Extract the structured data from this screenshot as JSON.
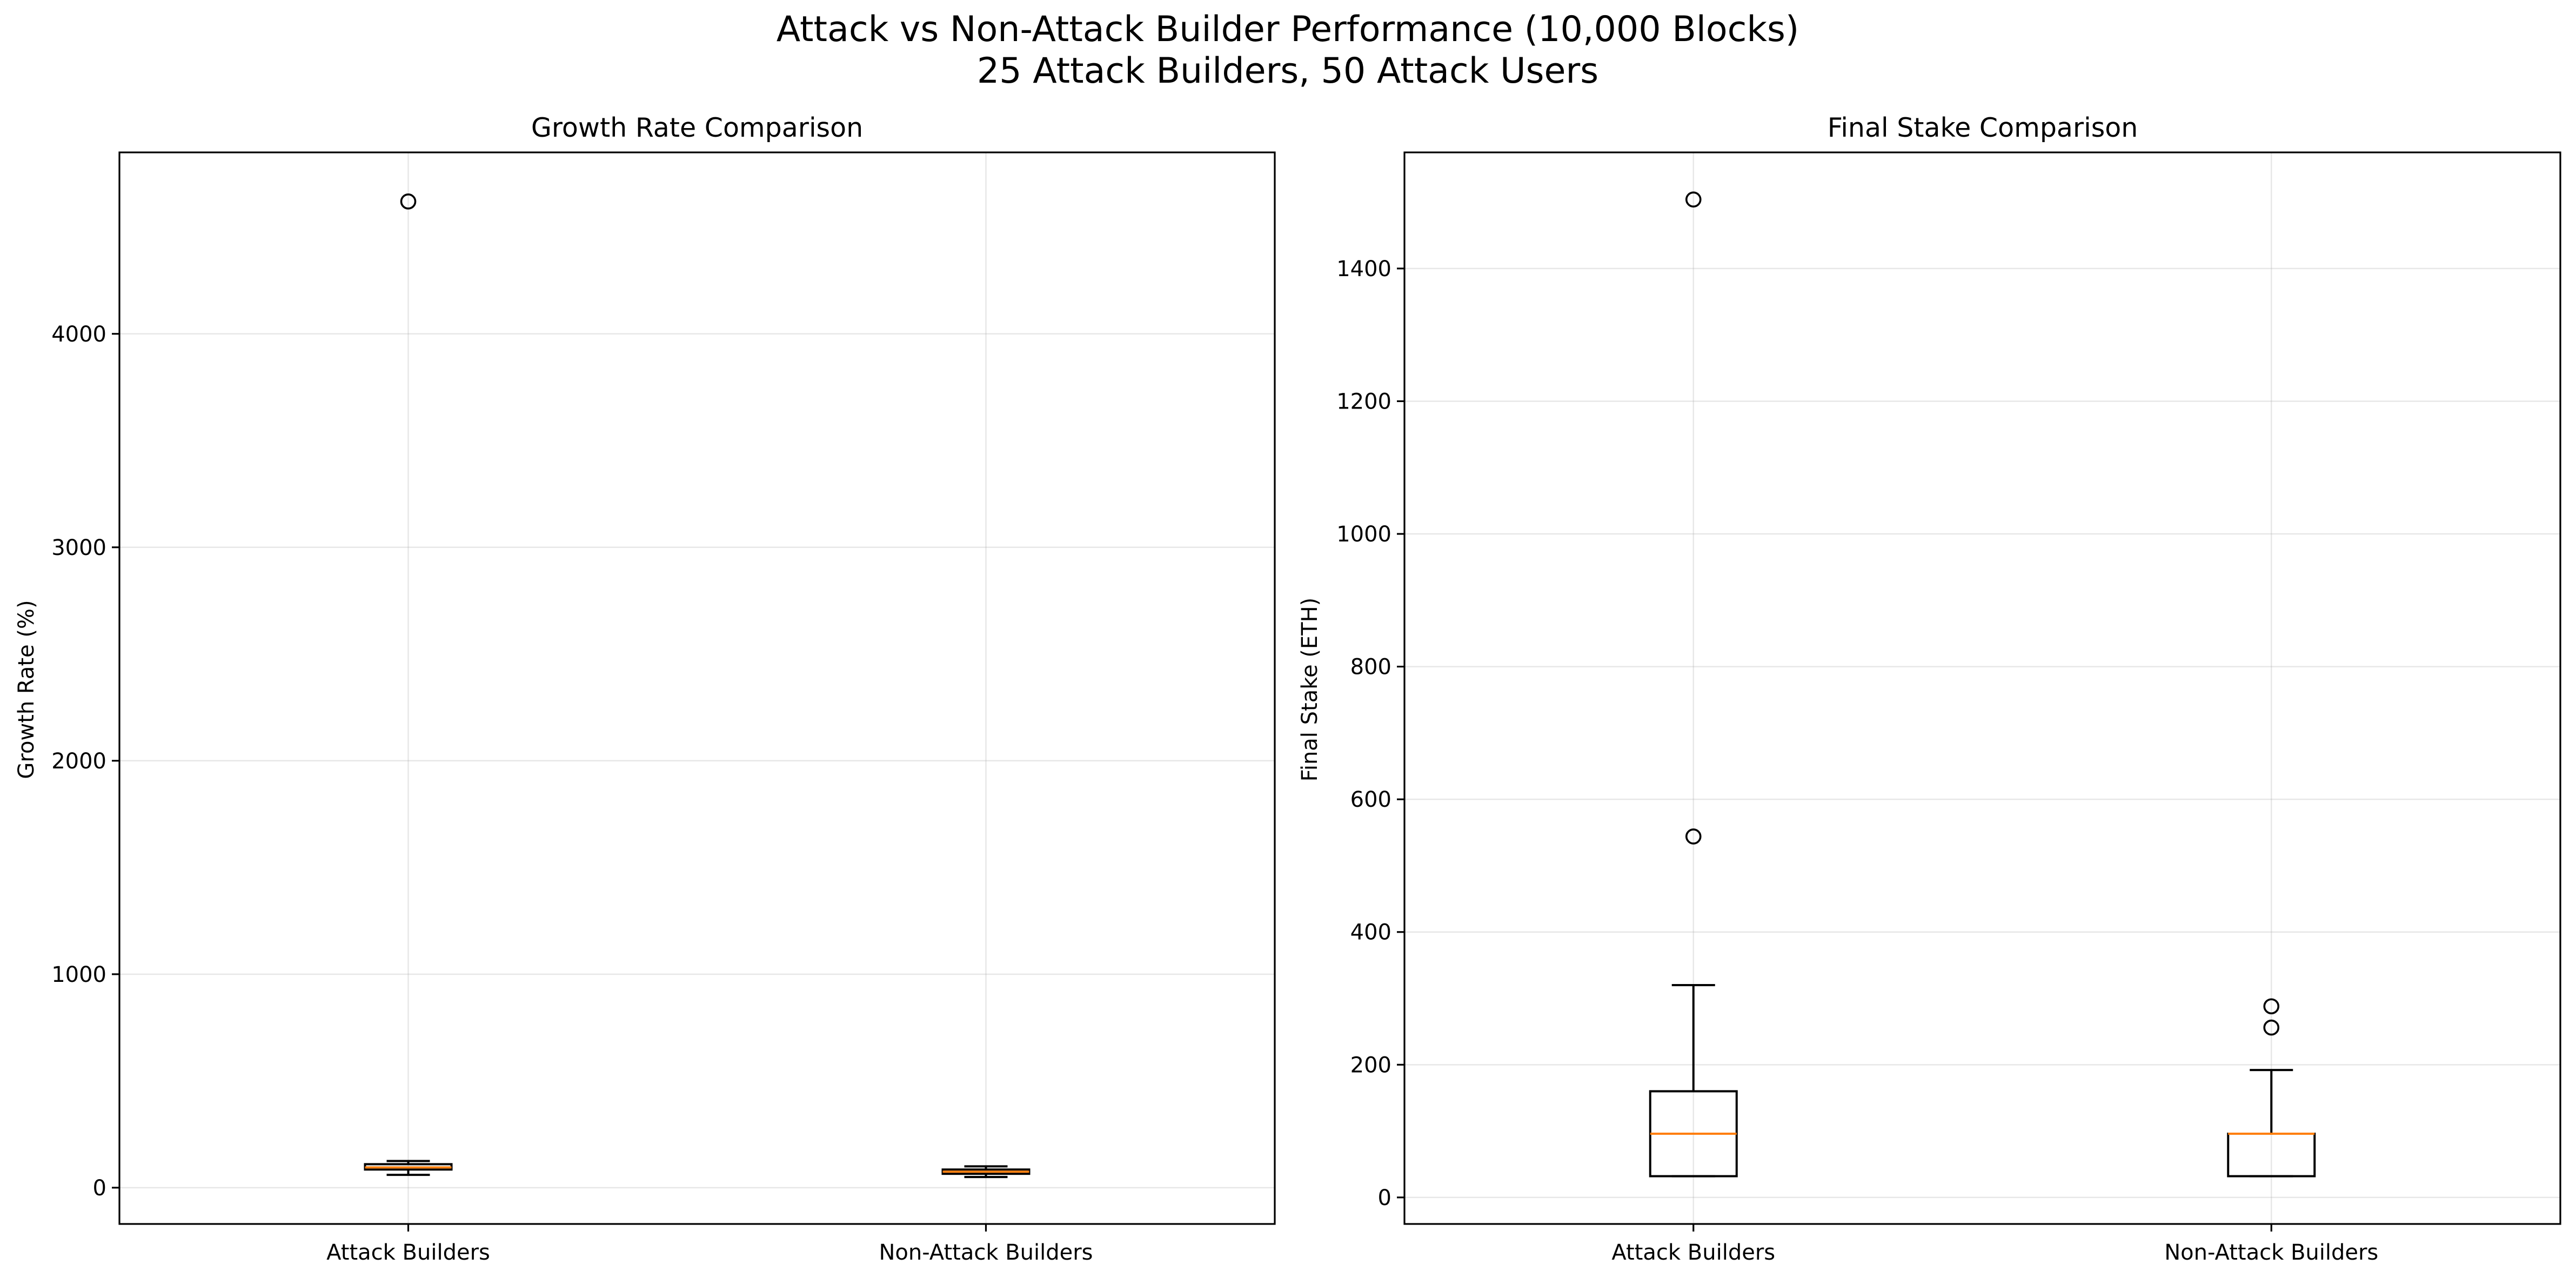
{
  "suptitle_line1": "Attack vs Non-Attack Builder Performance (10,000 Blocks)",
  "suptitle_line2": "25 Attack Builders, 50 Attack Users",
  "colors": {
    "box": "#000000",
    "median": "#ff7f0e",
    "grid": "#b0b0b0",
    "background": "#ffffff"
  },
  "chart_data": [
    {
      "type": "box",
      "title": "Growth Rate Comparison",
      "xlabel": "",
      "ylabel": "Growth Rate (%)",
      "categories": [
        "Attack Builders",
        "Non-Attack Builders"
      ],
      "ylim": [
        -170,
        4850
      ],
      "yticks": [
        0,
        1000,
        2000,
        3000,
        4000
      ],
      "grid": true,
      "boxes": [
        {
          "name": "Attack Builders",
          "whisker_low": 60,
          "q1": 85,
          "median": 95,
          "q3": 110,
          "whisker_high": 125,
          "outliers": [
            4620
          ]
        },
        {
          "name": "Non-Attack Builders",
          "whisker_low": 50,
          "q1": 65,
          "median": 75,
          "q3": 85,
          "whisker_high": 100,
          "outliers": []
        }
      ]
    },
    {
      "type": "box",
      "title": "Final Stake Comparison",
      "xlabel": "",
      "ylabel": "Final Stake (ETH)",
      "categories": [
        "Attack Builders",
        "Non-Attack Builders"
      ],
      "ylim": [
        -40,
        1575
      ],
      "yticks": [
        0,
        200,
        400,
        600,
        800,
        1000,
        1200,
        1400
      ],
      "grid": true,
      "boxes": [
        {
          "name": "Attack Builders",
          "whisker_low": 32,
          "q1": 32,
          "median": 96,
          "q3": 160,
          "whisker_high": 320,
          "outliers": [
            544,
            1504
          ]
        },
        {
          "name": "Non-Attack Builders",
          "whisker_low": 32,
          "q1": 32,
          "median": 96,
          "q3": 96,
          "whisker_high": 192,
          "outliers": [
            256,
            288
          ]
        }
      ]
    }
  ]
}
